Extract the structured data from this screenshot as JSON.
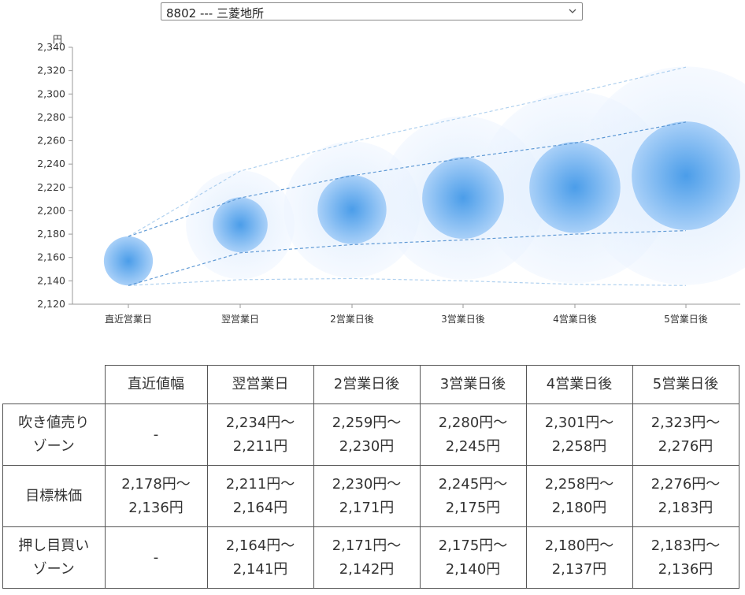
{
  "selector": {
    "value": "8802 --- 三菱地所",
    "icon": "chevron-down-icon"
  },
  "chart_data": {
    "type": "bubble-forecast",
    "y_unit": "円",
    "ylim": [
      2120,
      2340
    ],
    "yticks": [
      "2,120",
      "2,140",
      "2,160",
      "2,180",
      "2,200",
      "2,220",
      "2,240",
      "2,260",
      "2,280",
      "2,300",
      "2,320",
      "2,340"
    ],
    "categories": [
      "直近営業日",
      "翌営業日",
      "2営業日後",
      "3営業日後",
      "4営業日後",
      "5営業日後"
    ],
    "center": [
      2157,
      2188,
      2201,
      2211,
      2220,
      2230
    ],
    "target_range": [
      [
        2136,
        2178
      ],
      [
        2164,
        2211
      ],
      [
        2171,
        2230
      ],
      [
        2175,
        2245
      ],
      [
        2180,
        2258
      ],
      [
        2183,
        2276
      ]
    ],
    "outer_range": [
      [
        2136,
        2178
      ],
      [
        2141,
        2234
      ],
      [
        2142,
        2259
      ],
      [
        2140,
        2280
      ],
      [
        2137,
        2301
      ],
      [
        2136,
        2323
      ]
    ],
    "colors": {
      "bubble_core": "#5aa7ee",
      "bubble_edge": "#cfe4fb",
      "line": "#6aa3dc",
      "axis": "#999999"
    },
    "grid": false
  },
  "table": {
    "headers": [
      "",
      "直近値幅",
      "翌営業日",
      "2営業日後",
      "3営業日後",
      "4営業日後",
      "5営業日後"
    ],
    "rows": [
      {
        "label": [
          "吹き値売り",
          "ゾーン"
        ],
        "cells": [
          [
            "-"
          ],
          [
            "2,234円～",
            "2,211円"
          ],
          [
            "2,259円～",
            "2,230円"
          ],
          [
            "2,280円～",
            "2,245円"
          ],
          [
            "2,301円～",
            "2,258円"
          ],
          [
            "2,323円～",
            "2,276円"
          ]
        ]
      },
      {
        "label": [
          "目標株価"
        ],
        "cells": [
          [
            "2,178円～",
            "2,136円"
          ],
          [
            "2,211円～",
            "2,164円"
          ],
          [
            "2,230円～",
            "2,171円"
          ],
          [
            "2,245円～",
            "2,175円"
          ],
          [
            "2,258円～",
            "2,180円"
          ],
          [
            "2,276円～",
            "2,183円"
          ]
        ]
      },
      {
        "label": [
          "押し目買い",
          "ゾーン"
        ],
        "cells": [
          [
            "-"
          ],
          [
            "2,164円～",
            "2,141円"
          ],
          [
            "2,171円～",
            "2,142円"
          ],
          [
            "2,175円～",
            "2,140円"
          ],
          [
            "2,180円～",
            "2,137円"
          ],
          [
            "2,183円～",
            "2,136円"
          ]
        ]
      }
    ]
  }
}
